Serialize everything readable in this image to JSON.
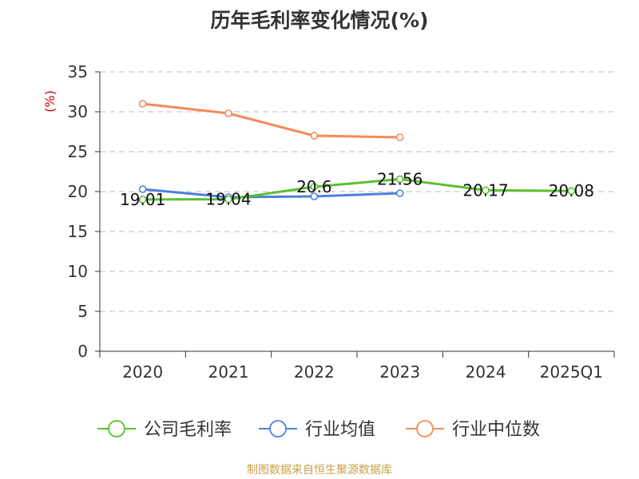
{
  "chart_data": {
    "type": "line",
    "title": "历年毛利率变化情况(%)",
    "ylabel": "(%)",
    "xlabel": "",
    "categories": [
      "2020",
      "2021",
      "2022",
      "2023",
      "2024",
      "2025Q1"
    ],
    "ylim": [
      0,
      35
    ],
    "yticks": [
      0,
      5,
      10,
      15,
      20,
      25,
      30,
      35
    ],
    "grid": "horizontal-dashed",
    "legend_position": "bottom",
    "series": [
      {
        "name": "公司毛利率",
        "color": "#5cc02f",
        "values": [
          19.01,
          19.04,
          20.6,
          21.56,
          20.17,
          20.08
        ],
        "labels": [
          "19.01",
          "19.04",
          "20.6",
          "21.56",
          "20.17",
          "20.08"
        ]
      },
      {
        "name": "行业均值",
        "color": "#4f7fdc",
        "values": [
          20.3,
          19.3,
          19.4,
          19.8,
          null,
          null
        ]
      },
      {
        "name": "行业中位数",
        "color": "#f5895a",
        "values": [
          31.0,
          29.8,
          27.0,
          26.8,
          null,
          null
        ]
      }
    ]
  },
  "source": "制图数据来自恒生聚源数据库",
  "ylabel_color": "#d40000"
}
